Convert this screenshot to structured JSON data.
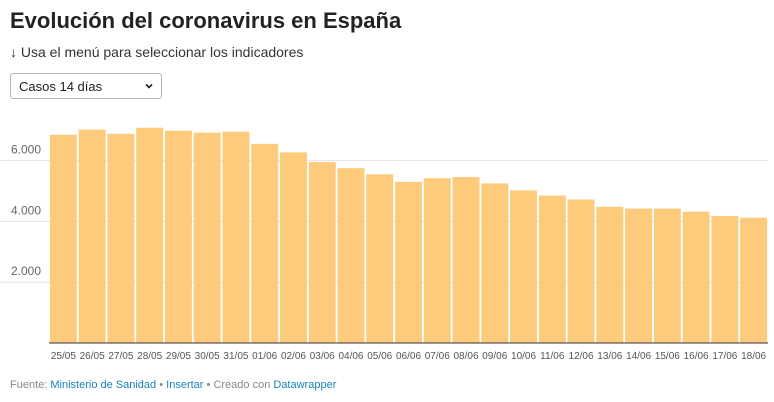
{
  "title": "Evolución del coronavirus en España",
  "subtitle": "↓ Usa el menú para seleccionar los indicadores",
  "selector": {
    "selected": "Casos 14 días",
    "options": [
      "Casos 14 días"
    ]
  },
  "chart_data": {
    "type": "bar",
    "categories": [
      "25/05",
      "26/05",
      "27/05",
      "28/05",
      "29/05",
      "30/05",
      "31/05",
      "01/06",
      "02/06",
      "03/06",
      "04/06",
      "05/06",
      "06/06",
      "07/06",
      "08/06",
      "09/06",
      "10/06",
      "11/06",
      "12/06",
      "13/06",
      "14/06",
      "15/06",
      "16/06",
      "17/06",
      "18/06"
    ],
    "values": [
      6850,
      7020,
      6880,
      7080,
      6980,
      6920,
      6950,
      6550,
      6270,
      5950,
      5750,
      5550,
      5300,
      5420,
      5460,
      5250,
      5020,
      4850,
      4720,
      4480,
      4420,
      4420,
      4320,
      4180,
      4120
    ],
    "ylim": [
      0,
      7400
    ],
    "yticks": [
      {
        "value": 2000,
        "label": "2.000"
      },
      {
        "value": 4000,
        "label": "4.000"
      },
      {
        "value": 6000,
        "label": "6.000"
      }
    ],
    "bar_color": "#fdcb7b",
    "grid": true
  },
  "footer": {
    "source_label": "Fuente:",
    "source_link": "Ministerio de Sanidad",
    "separator": "•",
    "embed_link": "Insertar",
    "created_label": "Creado con",
    "tool_link": "Datawrapper"
  }
}
